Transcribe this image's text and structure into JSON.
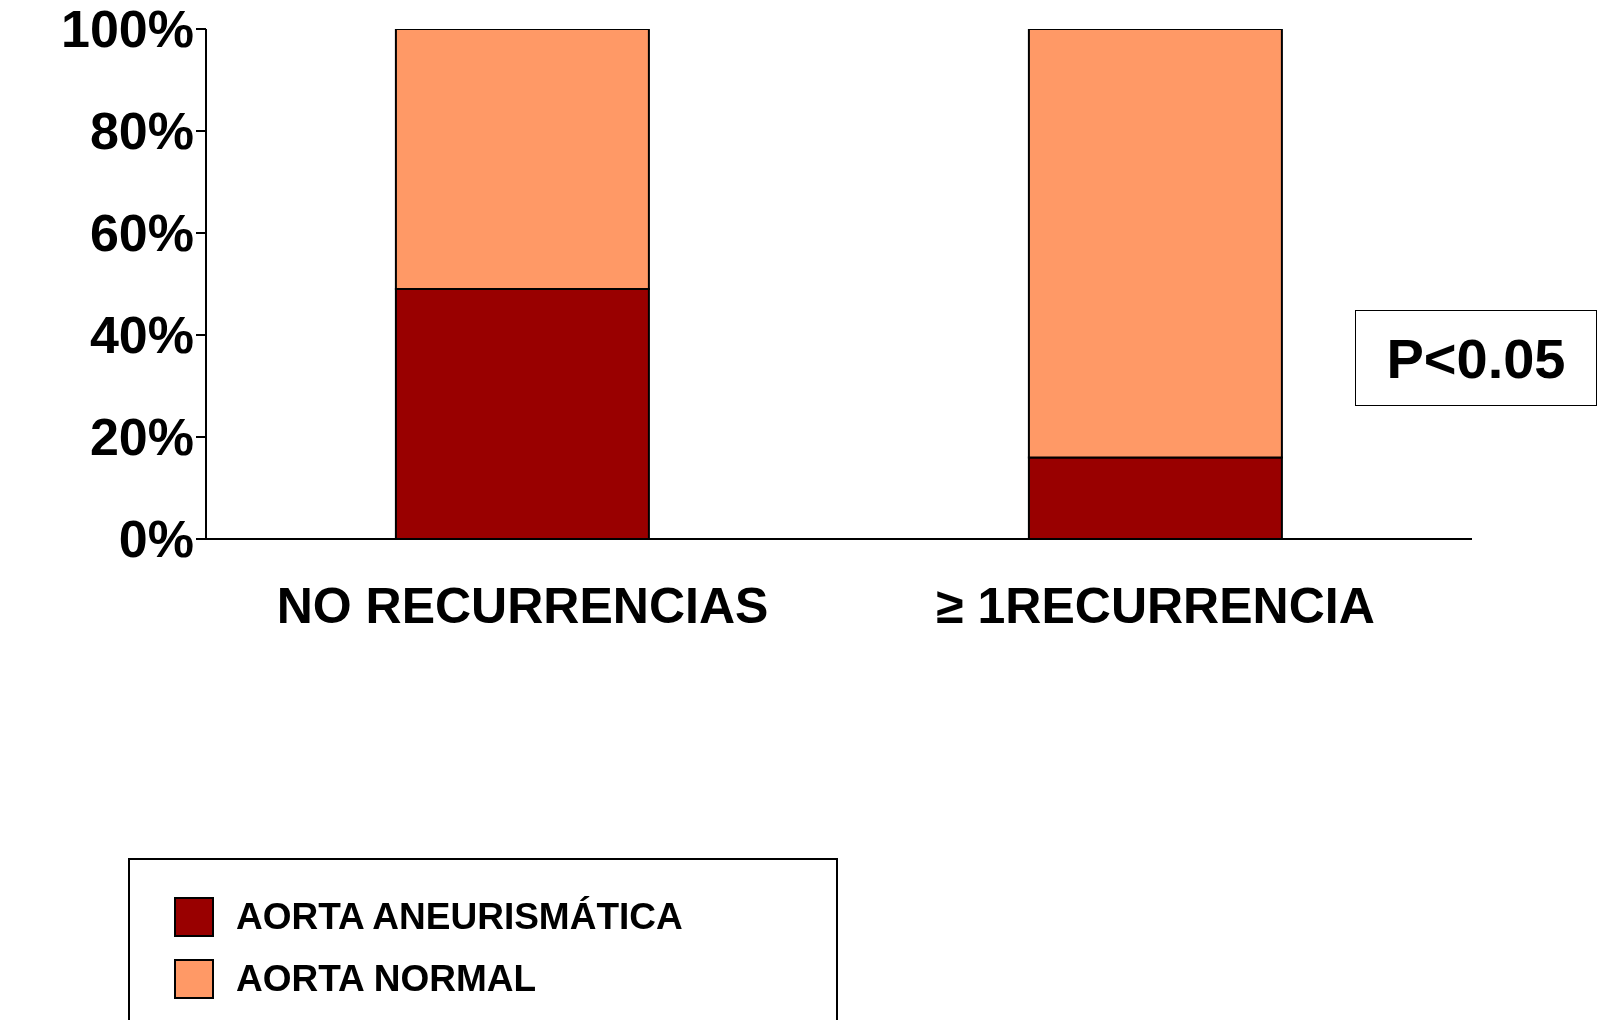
{
  "chart_data": {
    "type": "bar",
    "stacked": true,
    "categories": [
      "NO RECURRENCIAS",
      "≥ 1RECURRENCIA"
    ],
    "series": [
      {
        "name": "AORTA ANEURISMÁTICA",
        "color": "#990000",
        "values": [
          49,
          16
        ]
      },
      {
        "name": "AORTA NORMAL",
        "color": "#ff9966",
        "values": [
          51,
          84
        ]
      }
    ],
    "ylim": [
      0,
      100
    ],
    "yticks": [
      {
        "value": 0,
        "label": "0%"
      },
      {
        "value": 20,
        "label": "20%"
      },
      {
        "value": 40,
        "label": "40%"
      },
      {
        "value": 60,
        "label": "60%"
      },
      {
        "value": 80,
        "label": "80%"
      },
      {
        "value": 100,
        "label": "100%"
      }
    ],
    "grid": false,
    "legend": "bottom left",
    "annotations": [
      "P<0.05"
    ]
  }
}
